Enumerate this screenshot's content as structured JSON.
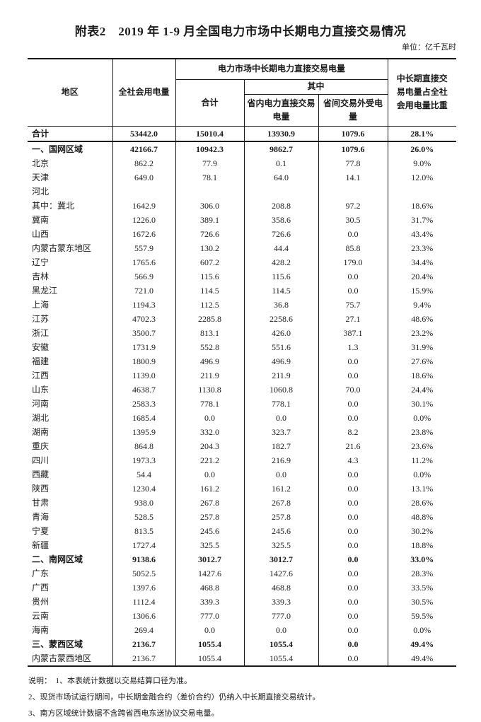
{
  "page": {
    "title": "附表2　2019 年 1-9 月全国电力市场中长期电力直接交易情况",
    "unit_label": "单位：亿千瓦时"
  },
  "table": {
    "headers": {
      "region": "地区",
      "total_consumption": "全社会用电量",
      "trade_group": "电力市场中长期电力直接交易电量",
      "subtotal": "合计",
      "among_which": "其中",
      "intra_provincial": "省内电力直接交易\n电量",
      "inter_provincial": "省间交易外受电\n量",
      "share": "中长期直接交\n易电量占全社\n会用电量比重"
    },
    "rows": [
      {
        "region": "合计",
        "style": "total",
        "values": [
          "53442.0",
          "15010.4",
          "13930.9",
          "1079.6",
          "28.1%"
        ]
      },
      {
        "region": "一、国网区域",
        "style": "section",
        "values": [
          "42166.7",
          "10942.3",
          "9862.7",
          "1079.6",
          "26.0%"
        ]
      },
      {
        "region": "北京",
        "style": "normal",
        "values": [
          "862.2",
          "77.9",
          "0.1",
          "77.8",
          "9.0%"
        ]
      },
      {
        "region": "天津",
        "style": "normal",
        "values": [
          "649.0",
          "78.1",
          "64.0",
          "14.1",
          "12.0%"
        ]
      },
      {
        "region": "河北",
        "style": "normal",
        "values": [
          "",
          "",
          "",
          "",
          ""
        ]
      },
      {
        "region": "其中：冀北",
        "style": "normal",
        "values": [
          "1642.9",
          "306.0",
          "208.8",
          "97.2",
          "18.6%"
        ]
      },
      {
        "region": "冀南",
        "style": "normal",
        "values": [
          "1226.0",
          "389.1",
          "358.6",
          "30.5",
          "31.7%"
        ]
      },
      {
        "region": "山西",
        "style": "normal",
        "values": [
          "1672.6",
          "726.6",
          "726.6",
          "0.0",
          "43.4%"
        ]
      },
      {
        "region": "内蒙古蒙东地区",
        "style": "normal",
        "values": [
          "557.9",
          "130.2",
          "44.4",
          "85.8",
          "23.3%"
        ]
      },
      {
        "region": "辽宁",
        "style": "normal",
        "values": [
          "1765.6",
          "607.2",
          "428.2",
          "179.0",
          "34.4%"
        ]
      },
      {
        "region": "吉林",
        "style": "normal",
        "values": [
          "566.9",
          "115.6",
          "115.6",
          "0.0",
          "20.4%"
        ]
      },
      {
        "region": "黑龙江",
        "style": "normal",
        "values": [
          "721.0",
          "114.5",
          "114.5",
          "0.0",
          "15.9%"
        ]
      },
      {
        "region": "上海",
        "style": "normal",
        "values": [
          "1194.3",
          "112.5",
          "36.8",
          "75.7",
          "9.4%"
        ]
      },
      {
        "region": "江苏",
        "style": "normal",
        "values": [
          "4702.3",
          "2285.8",
          "2258.6",
          "27.1",
          "48.6%"
        ]
      },
      {
        "region": "浙江",
        "style": "normal",
        "values": [
          "3500.7",
          "813.1",
          "426.0",
          "387.1",
          "23.2%"
        ]
      },
      {
        "region": "安徽",
        "style": "normal",
        "values": [
          "1731.9",
          "552.8",
          "551.6",
          "1.3",
          "31.9%"
        ]
      },
      {
        "region": "福建",
        "style": "normal",
        "values": [
          "1800.9",
          "496.9",
          "496.9",
          "0.0",
          "27.6%"
        ]
      },
      {
        "region": "江西",
        "style": "normal",
        "values": [
          "1139.0",
          "211.9",
          "211.9",
          "0.0",
          "18.6%"
        ]
      },
      {
        "region": "山东",
        "style": "normal",
        "values": [
          "4638.7",
          "1130.8",
          "1060.8",
          "70.0",
          "24.4%"
        ]
      },
      {
        "region": "河南",
        "style": "normal",
        "values": [
          "2583.3",
          "778.1",
          "778.1",
          "0.0",
          "30.1%"
        ]
      },
      {
        "region": "湖北",
        "style": "normal",
        "values": [
          "1685.4",
          "0.0",
          "0.0",
          "0.0",
          "0.0%"
        ]
      },
      {
        "region": "湖南",
        "style": "normal",
        "values": [
          "1395.9",
          "332.0",
          "323.7",
          "8.2",
          "23.8%"
        ]
      },
      {
        "region": "重庆",
        "style": "normal",
        "values": [
          "864.8",
          "204.3",
          "182.7",
          "21.6",
          "23.6%"
        ]
      },
      {
        "region": "四川",
        "style": "normal",
        "values": [
          "1973.3",
          "221.2",
          "216.9",
          "4.3",
          "11.2%"
        ]
      },
      {
        "region": "西藏",
        "style": "normal",
        "values": [
          "54.4",
          "0.0",
          "0.0",
          "0.0",
          "0.0%"
        ]
      },
      {
        "region": "陕西",
        "style": "normal",
        "values": [
          "1230.4",
          "161.2",
          "161.2",
          "0.0",
          "13.1%"
        ]
      },
      {
        "region": "甘肃",
        "style": "normal",
        "values": [
          "938.0",
          "267.8",
          "267.8",
          "0.0",
          "28.6%"
        ]
      },
      {
        "region": "青海",
        "style": "normal",
        "values": [
          "528.5",
          "257.8",
          "257.8",
          "0.0",
          "48.8%"
        ]
      },
      {
        "region": "宁夏",
        "style": "normal",
        "values": [
          "813.5",
          "245.6",
          "245.6",
          "0.0",
          "30.2%"
        ]
      },
      {
        "region": "新疆",
        "style": "normal",
        "values": [
          "1727.4",
          "325.5",
          "325.5",
          "0.0",
          "18.8%"
        ]
      },
      {
        "region": "二、南网区域",
        "style": "section",
        "values": [
          "9138.6",
          "3012.7",
          "3012.7",
          "0.0",
          "33.0%"
        ]
      },
      {
        "region": "广东",
        "style": "normal",
        "values": [
          "5052.5",
          "1427.6",
          "1427.6",
          "0.0",
          "28.3%"
        ]
      },
      {
        "region": "广西",
        "style": "normal",
        "values": [
          "1397.6",
          "468.8",
          "468.8",
          "0.0",
          "33.5%"
        ]
      },
      {
        "region": "贵州",
        "style": "normal",
        "values": [
          "1112.4",
          "339.3",
          "339.3",
          "0.0",
          "30.5%"
        ]
      },
      {
        "region": "云南",
        "style": "normal",
        "values": [
          "1306.6",
          "777.0",
          "777.0",
          "0.0",
          "59.5%"
        ]
      },
      {
        "region": "海南",
        "style": "normal",
        "values": [
          "269.4",
          "0.0",
          "0.0",
          "0.0",
          "0.0%"
        ]
      },
      {
        "region": "三、蒙西区域",
        "style": "section",
        "values": [
          "2136.7",
          "1055.4",
          "1055.4",
          "0.0",
          "49.4%"
        ]
      },
      {
        "region": "内蒙古蒙西地区",
        "style": "normal",
        "values": [
          "2136.7",
          "1055.4",
          "1055.4",
          "0.0",
          "49.4%"
        ]
      }
    ]
  },
  "notes": [
    "说明：　1、本表统计数据以交易结算口径为准。",
    "2、现货市场试运行期间，中长期金融合约（差价合约）仍纳入中长期直接交易统计。",
    "3、南方区域统计数据不含跨省西电东送协议交易电量。"
  ]
}
